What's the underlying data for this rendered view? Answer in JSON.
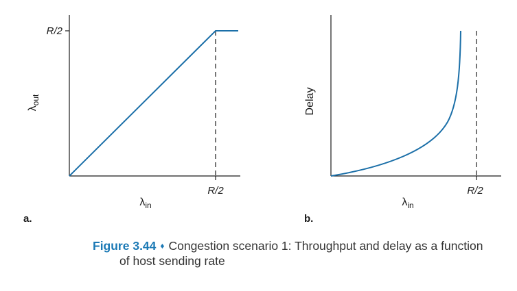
{
  "panel_a": {
    "label": "a.",
    "x_label": "λ",
    "x_label_sub": "in",
    "y_label": "λ",
    "y_label_sub": "out",
    "y_tick": "R/2",
    "x_tick": "R/2"
  },
  "panel_b": {
    "label": "b.",
    "x_label": "λ",
    "x_label_sub": "in",
    "y_label": "Delay",
    "x_tick": "R/2"
  },
  "caption": {
    "figure_number": "Figure 3.44",
    "separator": "♦",
    "line1": "Congestion scenario 1: Throughput and delay as a function",
    "line2": "of host sending rate"
  },
  "colors": {
    "curve": "#1b6fa8",
    "axis": "#1a1a1a",
    "accent": "#1b79b5"
  }
}
